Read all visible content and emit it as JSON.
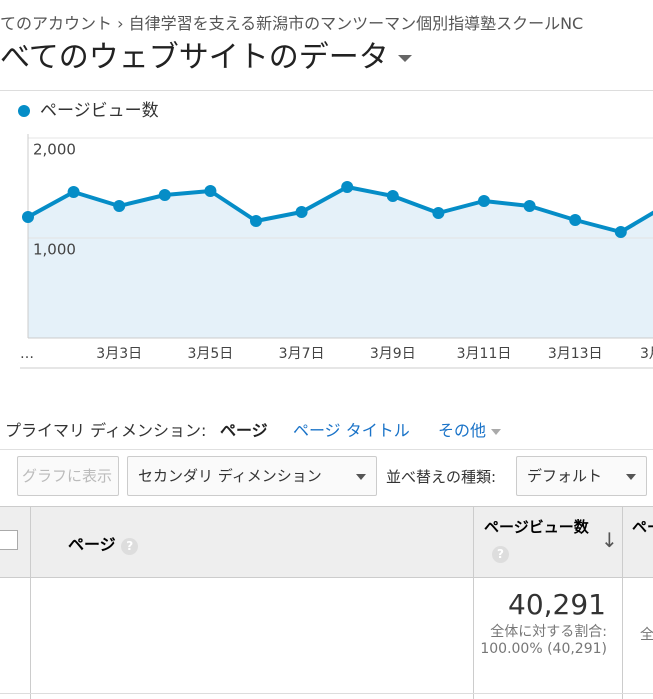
{
  "breadcrumb": "てのアカウント › 自律学習を支える新潟市のマンツーマン個別指導塾スクールNC",
  "view_title": "べてのウェブサイトのデータ",
  "chart_data": {
    "type": "line",
    "categories": [
      "…",
      null,
      "3月3日",
      null,
      "3月5日",
      null,
      "3月7日",
      null,
      "3月9日",
      null,
      "3月11日",
      null,
      "3月13日",
      null,
      "3月"
    ],
    "series": [
      {
        "name": "ページビュー数",
        "color": "#058dc7",
        "values": [
          1210,
          1460,
          1320,
          1430,
          1470,
          1170,
          1260,
          1510,
          1420,
          1250,
          1370,
          1320,
          1180,
          1060,
          1330
        ]
      }
    ],
    "ylim": [
      0,
      2000
    ],
    "yticks": [
      {
        "value": 1000,
        "label": "1,000"
      },
      {
        "value": 2000,
        "label": "2,000"
      }
    ],
    "grid": true,
    "area_color": "#e5f1f9"
  },
  "dimension_bar": {
    "label": "プライマリ ディメンション:",
    "active": "ページ",
    "options": [
      "ページ タイトル",
      "その他"
    ]
  },
  "controls": {
    "graph_button": "グラフに表示",
    "secondary": "セカンダリ ディメンション",
    "sort_label": "並べ替えの種類:",
    "sort_value": "デフォルト"
  },
  "table": {
    "headers": [
      "ページ",
      "ページビュー数",
      "ペー"
    ],
    "total": {
      "value": "40,291",
      "note": "全体に対する割合: 100.00% (40,291)",
      "next": "全"
    }
  }
}
